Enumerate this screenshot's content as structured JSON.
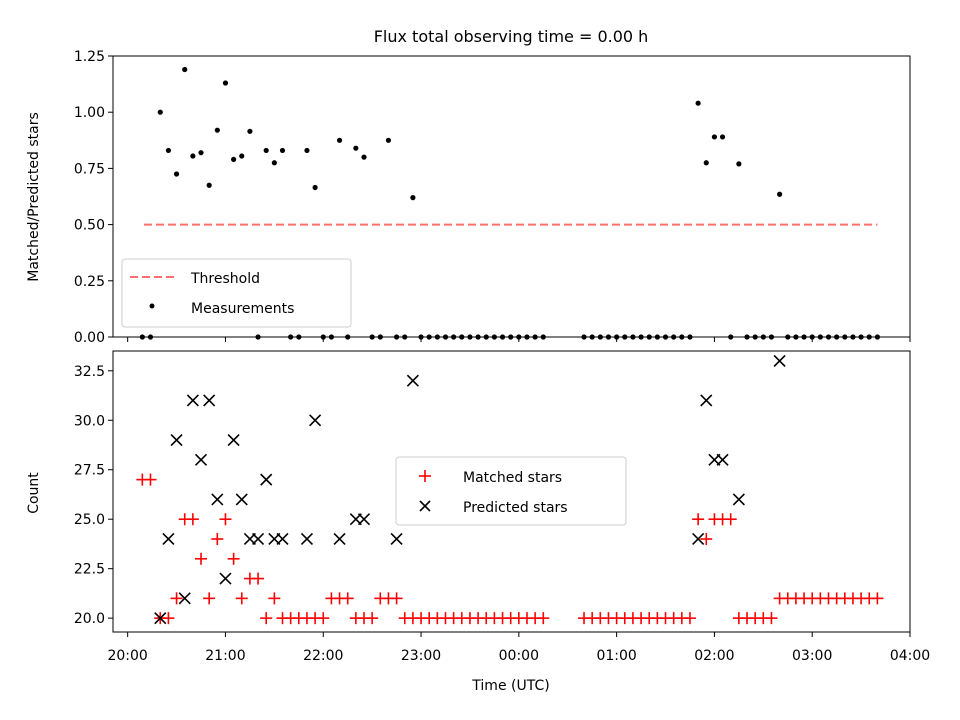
{
  "title": "Flux total observing time = 0.00 h",
  "colors": {
    "threshold": "#ff6f6f",
    "measurements": "#000000",
    "matched": "#ff0000",
    "predicted": "#000000"
  },
  "chart_data": [
    {
      "type": "scatter",
      "ylabel": "Matched/Predicted stars",
      "ylim": [
        0,
        1.25
      ],
      "yticks": [
        0,
        0.25,
        0.5,
        0.75,
        1.0,
        1.25
      ],
      "ytick_labels": [
        "0.00",
        "0.25",
        "0.50",
        "0.75",
        "1.00",
        "1.25"
      ],
      "xlim": [
        "19:51",
        "04:00"
      ],
      "x_tick_times": [
        "20:00",
        "21:00",
        "22:00",
        "23:00",
        "00:00",
        "01:00",
        "02:00",
        "03:00",
        "04:00"
      ],
      "legend": {
        "placement": "lower-left",
        "entries": [
          "Threshold",
          "Measurements"
        ]
      },
      "series": [
        {
          "name": "Threshold",
          "style": "dashed-line",
          "x": [
            "20:10",
            "03:40"
          ],
          "y": [
            0.5,
            0.5
          ]
        },
        {
          "name": "Measurements",
          "style": "dot",
          "x": [
            "20:09",
            "20:14",
            "20:20",
            "20:25",
            "20:30",
            "20:35",
            "20:40",
            "20:45",
            "20:50",
            "20:55",
            "21:00",
            "21:05",
            "21:10",
            "21:15",
            "21:20",
            "21:25",
            "21:30",
            "21:35",
            "21:40",
            "21:45",
            "21:50",
            "21:55",
            "22:00",
            "22:05",
            "22:10",
            "22:15",
            "22:20",
            "22:25",
            "22:30",
            "22:35",
            "22:40",
            "22:45",
            "22:50",
            "22:55",
            "23:00",
            "23:05",
            "23:10",
            "23:15",
            "23:20",
            "23:25",
            "23:30",
            "23:35",
            "23:40",
            "23:45",
            "23:50",
            "23:55",
            "00:00",
            "00:05",
            "00:10",
            "00:15",
            "00:40",
            "00:45",
            "00:50",
            "00:55",
            "01:00",
            "01:05",
            "01:10",
            "01:15",
            "01:20",
            "01:25",
            "01:30",
            "01:35",
            "01:40",
            "01:45",
            "01:50",
            "01:55",
            "02:00",
            "02:05",
            "02:10",
            "02:15",
            "02:20",
            "02:25",
            "02:30",
            "02:35",
            "02:40",
            "02:45",
            "02:50",
            "02:55",
            "03:00",
            "03:05",
            "03:10",
            "03:15",
            "03:20",
            "03:25",
            "03:30",
            "03:35",
            "03:40"
          ],
          "y": [
            0,
            0,
            1.0,
            0.83,
            0.725,
            1.19,
            0.805,
            0.82,
            0.675,
            0.92,
            1.13,
            0.79,
            0.805,
            0.915,
            0,
            0.83,
            0.775,
            0.83,
            0,
            0,
            0.83,
            0.665,
            0,
            0,
            0.875,
            0,
            0.84,
            0.8,
            0,
            0,
            0.875,
            0,
            0,
            0.62,
            0,
            0,
            0,
            0,
            0,
            0,
            0,
            0,
            0,
            0,
            0,
            0,
            0,
            0,
            0,
            0,
            0,
            0,
            0,
            0,
            0,
            0,
            0,
            0,
            0,
            0,
            0,
            0,
            0,
            0,
            1.04,
            0.775,
            0.89,
            0.89,
            0,
            0.77,
            0,
            0,
            0,
            0,
            0.635,
            0,
            0,
            0,
            0,
            0,
            0,
            0,
            0,
            0,
            0,
            0,
            0
          ]
        }
      ]
    },
    {
      "type": "scatter",
      "xlabel": "Time (UTC)",
      "ylabel": "Count",
      "ylim": [
        19.3,
        33.5
      ],
      "yticks": [
        20,
        22.5,
        25,
        27.5,
        30,
        32.5
      ],
      "ytick_labels": [
        "20.0",
        "22.5",
        "25.0",
        "27.5",
        "30.0",
        "32.5"
      ],
      "xlim": [
        "19:51",
        "04:00"
      ],
      "x_tick_labels": [
        "20:00",
        "21:00",
        "22:00",
        "23:00",
        "00:00",
        "01:00",
        "02:00",
        "03:00",
        "04:00"
      ],
      "legend": {
        "placement": "center",
        "entries": [
          "Matched stars",
          "Predicted stars"
        ]
      },
      "series": [
        {
          "name": "Matched stars",
          "marker": "plus",
          "x": [
            "20:09",
            "20:14",
            "20:20",
            "20:25",
            "20:30",
            "20:35",
            "20:40",
            "20:45",
            "20:50",
            "20:55",
            "21:00",
            "21:05",
            "21:10",
            "21:15",
            "21:20",
            "21:25",
            "21:30",
            "21:35",
            "21:40",
            "21:45",
            "21:50",
            "21:55",
            "22:00",
            "22:05",
            "22:10",
            "22:15",
            "22:20",
            "22:25",
            "22:30",
            "22:35",
            "22:40",
            "22:45",
            "22:50",
            "22:55",
            "23:00",
            "23:05",
            "23:10",
            "23:15",
            "23:20",
            "23:25",
            "23:30",
            "23:35",
            "23:40",
            "23:45",
            "23:50",
            "23:55",
            "00:00",
            "00:05",
            "00:10",
            "00:15",
            "00:40",
            "00:45",
            "00:50",
            "00:55",
            "01:00",
            "01:05",
            "01:10",
            "01:15",
            "01:20",
            "01:25",
            "01:30",
            "01:35",
            "01:40",
            "01:45",
            "01:50",
            "01:55",
            "02:00",
            "02:05",
            "02:10",
            "02:15",
            "02:20",
            "02:25",
            "02:30",
            "02:35",
            "02:40",
            "02:45",
            "02:50",
            "02:55",
            "03:00",
            "03:05",
            "03:10",
            "03:15",
            "03:20",
            "03:25",
            "03:30",
            "03:35",
            "03:40"
          ],
          "y": [
            27,
            27,
            20,
            20,
            21,
            25,
            25,
            23,
            21,
            24,
            25,
            23,
            21,
            22,
            22,
            20,
            21,
            20,
            20,
            20,
            20,
            20,
            20,
            21,
            21,
            21,
            20,
            20,
            20,
            21,
            21,
            21,
            20,
            20,
            20,
            20,
            20,
            20,
            20,
            20,
            20,
            20,
            20,
            20,
            20,
            20,
            20,
            20,
            20,
            20,
            20,
            20,
            20,
            20,
            20,
            20,
            20,
            20,
            20,
            20,
            20,
            20,
            20,
            20,
            25,
            24,
            25,
            25,
            25,
            20,
            20,
            20,
            20,
            20,
            21,
            21,
            21,
            21,
            21,
            21,
            21,
            21,
            21,
            21,
            21,
            21,
            21
          ]
        },
        {
          "name": "Predicted stars",
          "marker": "x",
          "x": [
            "20:20",
            "20:25",
            "20:30",
            "20:35",
            "20:40",
            "20:45",
            "20:50",
            "20:55",
            "21:00",
            "21:05",
            "21:10",
            "21:15",
            "21:20",
            "21:25",
            "21:30",
            "21:35",
            "21:50",
            "21:55",
            "22:10",
            "22:20",
            "22:25",
            "22:45",
            "22:55",
            "01:50",
            "01:55",
            "02:00",
            "02:05",
            "02:15",
            "02:40"
          ],
          "y": [
            20,
            24,
            29,
            21,
            31,
            28,
            31,
            26,
            22,
            29,
            26,
            24,
            24,
            27,
            24,
            24,
            24,
            30,
            24,
            25,
            25,
            24,
            32,
            24,
            31,
            28,
            28,
            26,
            33
          ]
        }
      ]
    }
  ]
}
